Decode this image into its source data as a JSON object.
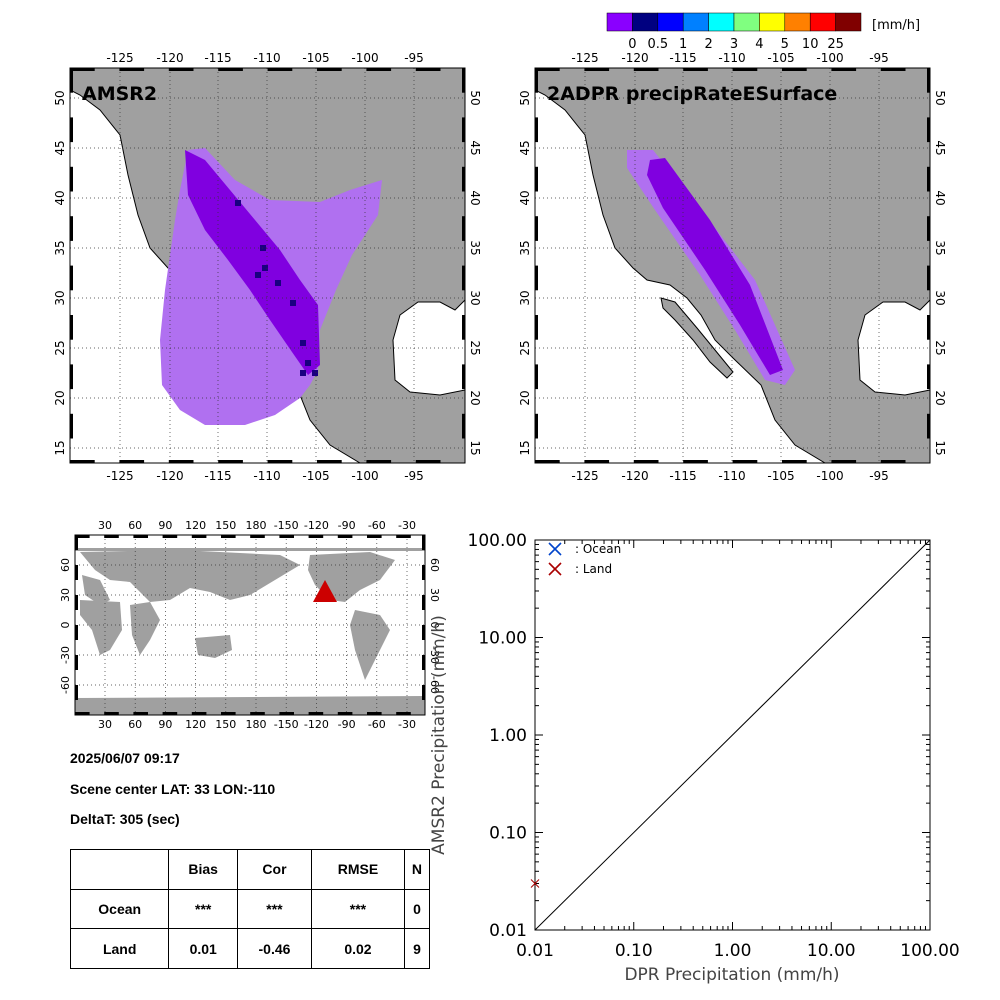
{
  "colorbar": {
    "unit": "[mm/h]",
    "labels": [
      "0",
      "0.5",
      "1",
      "2",
      "3",
      "4",
      "5",
      "10",
      "25"
    ],
    "colors": [
      "#8a00ff",
      "#000080",
      "#0000ff",
      "#0080ff",
      "#00ffff",
      "#80ff80",
      "#ffff00",
      "#ff8000",
      "#ff0000",
      "#800000"
    ]
  },
  "maps": {
    "left_title": "AMSR2",
    "right_title": "2ADPR precipRateESurface",
    "lon_ticks": [
      "-125",
      "-120",
      "-115",
      "-110",
      "-105",
      "-100",
      "-95"
    ],
    "lat_ticks": [
      "50",
      "45",
      "40",
      "35",
      "30",
      "25",
      "20",
      "15"
    ],
    "land_color": "#a0a0a0",
    "rain_light_color": "#b070f0",
    "rain_core_color": "#8000e0"
  },
  "globe": {
    "lon_ticks": [
      "30",
      "60",
      "90",
      "120",
      "150",
      "180",
      "-150",
      "-120",
      "-90",
      "-60",
      "-30"
    ],
    "lat_ticks": [
      "60",
      "30",
      "0",
      "-30",
      "-60"
    ],
    "marker_color": "#cc0000"
  },
  "info": {
    "datetime": "2025/06/07 09:17",
    "scene_center": "Scene center LAT: 33   LON:-110",
    "delta_t": "DeltaT:  305 (sec)"
  },
  "stats_table": {
    "headers": [
      "Bias",
      "Cor",
      "RMSE",
      "N"
    ],
    "rows": [
      {
        "label": "Ocean",
        "bias": "***",
        "cor": "***",
        "rmse": "***",
        "n": "0"
      },
      {
        "label": "Land",
        "bias": "0.01",
        "cor": "-0.46",
        "rmse": "0.02",
        "n": "9"
      }
    ]
  },
  "chart_data": {
    "type": "scatter",
    "xlabel": "DPR Precipitation (mm/h)",
    "ylabel": "AMSR2 Precipitation (mm/h)",
    "x_scale": "log",
    "y_scale": "log",
    "xlim": [
      0.01,
      100
    ],
    "ylim": [
      0.01,
      100
    ],
    "x_tick_labels": [
      "0.01",
      "0.10",
      "1.00",
      "10.00",
      "100.00"
    ],
    "y_tick_labels": [
      "0.01",
      "0.10",
      "1.00",
      "10.00",
      "100.00"
    ],
    "legend_position": "top-left",
    "series": [
      {
        "name": ": Ocean",
        "color": "#0044cc",
        "marker": "x",
        "points": []
      },
      {
        "name": ": Land",
        "color": "#aa0000",
        "marker": "x",
        "points": [
          [
            0.01,
            0.03
          ]
        ]
      }
    ],
    "reference_line": "1:1 diagonal"
  }
}
